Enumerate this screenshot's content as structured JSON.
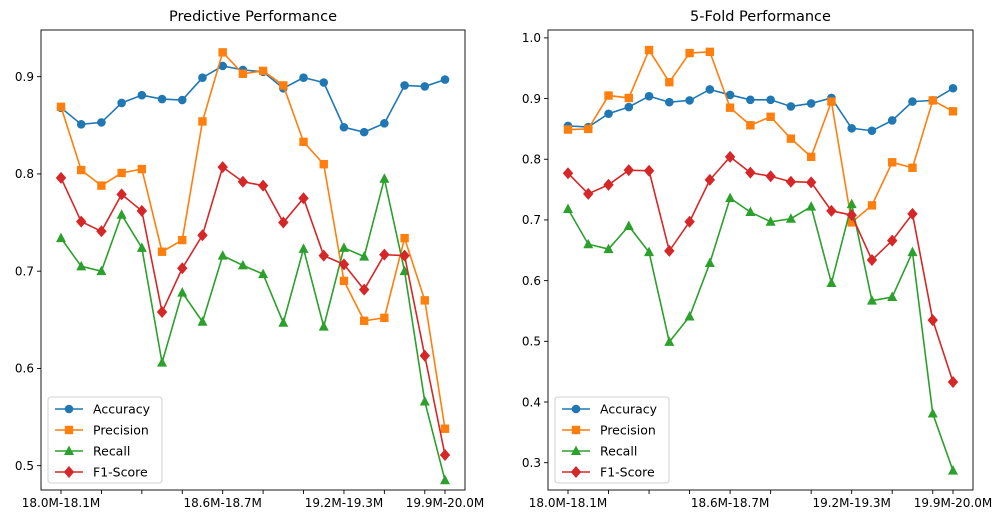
{
  "chart_data": [
    {
      "type": "line",
      "title": "Predictive Performance",
      "xlabel": "",
      "ylabel": "",
      "ylim": [
        0.475,
        0.948
      ],
      "yticks": [
        0.5,
        0.6,
        0.7,
        0.8,
        0.9
      ],
      "ytick_labels": [
        "0.5",
        "0.6",
        "0.7",
        "0.8",
        "0.9"
      ],
      "x_tick_labels": [
        "18.0M-18.1M",
        "",
        "",
        "",
        "18.6M-18.7M",
        "",
        "",
        "19.2M-19.3M",
        "",
        "",
        "19.9M-20.0M"
      ],
      "legend_position": "lower left",
      "grid": false,
      "series": [
        {
          "name": "Accuracy",
          "color": "#1f77b4",
          "marker": "circle",
          "values": [
            0.868,
            0.851,
            0.853,
            0.873,
            0.881,
            0.877,
            0.876,
            0.899,
            0.911,
            0.907,
            0.905,
            0.888,
            0.899,
            0.894,
            0.848,
            0.843,
            0.852,
            0.891,
            0.89,
            0.897
          ]
        },
        {
          "name": "Precision",
          "color": "#ff7f0e",
          "marker": "square",
          "values": [
            0.869,
            0.804,
            0.788,
            0.801,
            0.805,
            0.72,
            0.732,
            0.854,
            0.925,
            0.903,
            0.906,
            0.891,
            0.833,
            0.81,
            0.69,
            0.649,
            0.652,
            0.734,
            0.67,
            0.538
          ]
        },
        {
          "name": "Recall",
          "color": "#2ca02c",
          "marker": "triangle",
          "values": [
            0.734,
            0.705,
            0.7,
            0.758,
            0.724,
            0.606,
            0.678,
            0.648,
            0.716,
            0.706,
            0.697,
            0.647,
            0.723,
            0.643,
            0.724,
            0.715,
            0.795,
            0.7,
            0.566,
            0.485
          ]
        },
        {
          "name": "F1-Score",
          "color": "#d62728",
          "marker": "diamond",
          "values": [
            0.796,
            0.751,
            0.741,
            0.779,
            0.762,
            0.658,
            0.703,
            0.737,
            0.807,
            0.792,
            0.788,
            0.75,
            0.775,
            0.716,
            0.707,
            0.681,
            0.717,
            0.716,
            0.613,
            0.511
          ]
        }
      ]
    },
    {
      "type": "line",
      "title": "5-Fold Performance",
      "xlabel": "",
      "ylabel": "",
      "ylim": [
        0.255,
        1.013
      ],
      "yticks": [
        0.3,
        0.4,
        0.5,
        0.6,
        0.7,
        0.8,
        0.9,
        1.0
      ],
      "ytick_labels": [
        "0.3",
        "0.4",
        "0.5",
        "0.6",
        "0.7",
        "0.8",
        "0.9",
        "1.0"
      ],
      "x_tick_labels": [
        "18.0M-18.1M",
        "",
        "",
        "",
        "18.6M-18.7M",
        "",
        "",
        "19.2M-19.3M",
        "",
        "",
        "19.9M-20.0M"
      ],
      "legend_position": "lower left",
      "grid": false,
      "series": [
        {
          "name": "Accuracy",
          "color": "#1f77b4",
          "marker": "circle",
          "values": [
            0.855,
            0.853,
            0.875,
            0.886,
            0.904,
            0.894,
            0.897,
            0.915,
            0.906,
            0.898,
            0.898,
            0.887,
            0.892,
            0.901,
            0.851,
            0.847,
            0.864,
            0.895,
            0.897,
            0.917
          ]
        },
        {
          "name": "Precision",
          "color": "#ff7f0e",
          "marker": "square",
          "values": [
            0.849,
            0.85,
            0.905,
            0.901,
            0.98,
            0.927,
            0.975,
            0.977,
            0.885,
            0.856,
            0.87,
            0.834,
            0.804,
            0.895,
            0.696,
            0.724,
            0.795,
            0.786,
            0.897,
            0.879
          ]
        },
        {
          "name": "Recall",
          "color": "#2ca02c",
          "marker": "triangle",
          "values": [
            0.718,
            0.66,
            0.652,
            0.69,
            0.647,
            0.499,
            0.541,
            0.629,
            0.736,
            0.713,
            0.697,
            0.702,
            0.722,
            0.596,
            0.726,
            0.567,
            0.573,
            0.647,
            0.381,
            0.287
          ]
        },
        {
          "name": "F1-Score",
          "color": "#d62728",
          "marker": "diamond",
          "values": [
            0.777,
            0.743,
            0.758,
            0.782,
            0.781,
            0.649,
            0.697,
            0.766,
            0.804,
            0.778,
            0.772,
            0.763,
            0.762,
            0.715,
            0.708,
            0.634,
            0.666,
            0.71,
            0.535,
            0.433
          ]
        }
      ]
    }
  ]
}
